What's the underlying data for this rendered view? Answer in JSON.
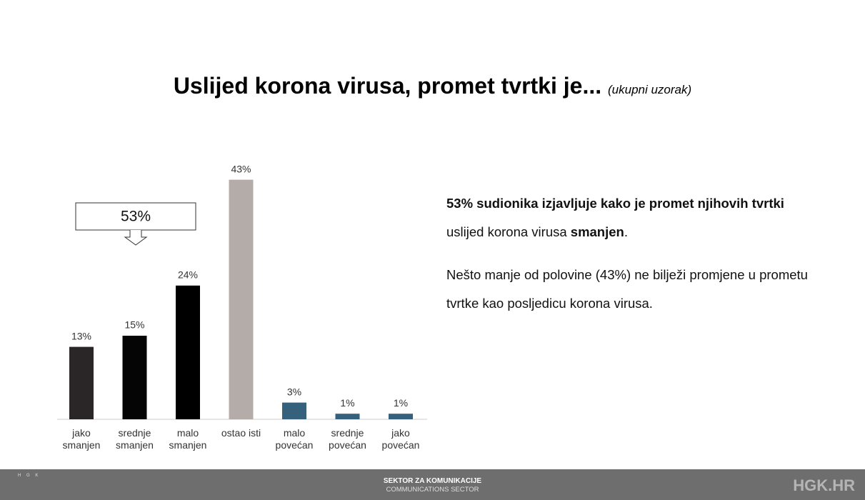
{
  "chart_data": {
    "type": "bar",
    "title": "Uslijed korona virusa, promet tvrtki je...",
    "subtitle": "(ukupni uzorak)",
    "categories": [
      "jako\nsmanjen",
      "srednje\nsmanjen",
      "malo\nsmanjen",
      "ostao isti",
      "malo\npovećan",
      "srednje\npovećan",
      "jako\npovećan"
    ],
    "values": [
      13,
      15,
      24,
      43,
      3,
      1,
      1
    ],
    "value_labels": [
      "13%",
      "15%",
      "24%",
      "43%",
      "3%",
      "1%",
      "1%"
    ],
    "colors": [
      "#2a2627",
      "#050505",
      "#000000",
      "#b3aca8",
      "#35617c",
      "#35617c",
      "#35617c"
    ],
    "ylim": [
      0,
      45
    ],
    "annotation": "53%"
  },
  "text": {
    "paragraphs": [
      [
        {
          "text": "53% sudionika izjavljuje kako je promet njihovih tvrtki",
          "bold": true
        },
        {
          "text": " uslijed korona virusa ",
          "bold": false
        },
        {
          "text": "smanjen",
          "bold": true
        },
        {
          "text": ".",
          "bold": false
        }
      ],
      [
        {
          "text": "Nešto manje od polovine (43%) ne bilježi promjene u prometu tvrtke kao posljedicu korona virusa.",
          "bold": false
        }
      ]
    ]
  },
  "footer": {
    "logo": "H G K",
    "line1": "SEKTOR ZA KOMUNIKACIJE",
    "line2": "COMMUNICATIONS SECTOR",
    "site": "HGK.HR"
  }
}
